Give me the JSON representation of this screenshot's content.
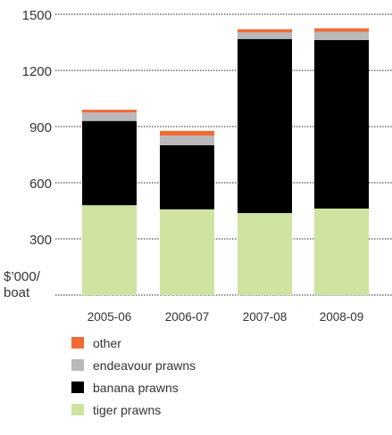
{
  "chart_data": {
    "type": "bar",
    "stacked": true,
    "categories": [
      "2005-06",
      "2006-07",
      "2007-08",
      "2008-09"
    ],
    "series": [
      {
        "name": "tiger prawns",
        "color": "#cfe3a0",
        "values": [
          480,
          458,
          438,
          462
        ]
      },
      {
        "name": "banana prawns",
        "color": "#000000",
        "values": [
          450,
          342,
          930,
          900
        ]
      },
      {
        "name": "endeavour prawns",
        "color": "#b9b9bb",
        "values": [
          45,
          52,
          35,
          45
        ]
      },
      {
        "name": "other",
        "color": "#f26b35",
        "values": [
          15,
          25,
          17,
          18
        ]
      }
    ],
    "ylim": [
      0,
      1500
    ],
    "yticks": [
      300,
      600,
      900,
      1200,
      1500
    ],
    "ylabel_line1": "$’000/",
    "ylabel_line2": "boat",
    "grid": "dotted horizontal",
    "legend_order": [
      "other",
      "endeavour prawns",
      "banana prawns",
      "tiger prawns"
    ],
    "legend_position": "bottom"
  }
}
